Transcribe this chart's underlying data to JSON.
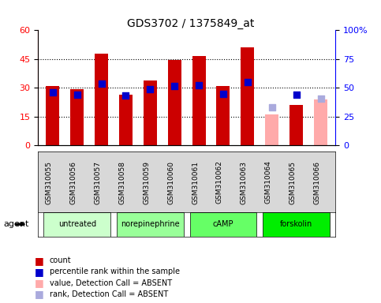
{
  "title": "GDS3702 / 1375849_at",
  "samples": [
    "GSM310055",
    "GSM310056",
    "GSM310057",
    "GSM310058",
    "GSM310059",
    "GSM310060",
    "GSM310061",
    "GSM310062",
    "GSM310063",
    "GSM310064",
    "GSM310065",
    "GSM310066"
  ],
  "groups": [
    {
      "label": "untreated",
      "color": "#ccffcc",
      "indices": [
        0,
        1,
        2
      ]
    },
    {
      "label": "norepinephrine",
      "color": "#99ff99",
      "indices": [
        3,
        4,
        5
      ]
    },
    {
      "label": "cAMP",
      "color": "#66ff66",
      "indices": [
        6,
        7,
        8
      ]
    },
    {
      "label": "forskolin",
      "color": "#00ee00",
      "indices": [
        9,
        10,
        11
      ]
    }
  ],
  "count_values": [
    31.0,
    29.5,
    48.0,
    26.5,
    34.0,
    44.5,
    46.5,
    31.0,
    51.0,
    16.0,
    21.0,
    24.0
  ],
  "rank_values": [
    27.5,
    26.5,
    32.0,
    26.0,
    29.5,
    31.0,
    31.5,
    27.0,
    33.0,
    null,
    26.5,
    null
  ],
  "absent_count": [
    null,
    null,
    null,
    null,
    null,
    null,
    null,
    null,
    null,
    16.0,
    null,
    24.0
  ],
  "absent_rank": [
    null,
    null,
    null,
    null,
    null,
    null,
    null,
    null,
    null,
    20.0,
    null,
    24.5
  ],
  "ylim_left": [
    0,
    60
  ],
  "ylim_right": [
    0,
    100
  ],
  "yticks_left": [
    0,
    15,
    30,
    45,
    60
  ],
  "yticks_right": [
    0,
    25,
    50,
    75,
    100
  ],
  "ytick_labels_right": [
    "0",
    "25",
    "50",
    "75",
    "100%"
  ],
  "bar_color_present": "#cc0000",
  "bar_color_absent": "#ffaaaa",
  "rank_color_present": "#0000cc",
  "rank_color_absent": "#aaaadd",
  "bg_color": "#e8e8e8",
  "agent_label": "agent",
  "legend_items": [
    {
      "color": "#cc0000",
      "marker": "s",
      "label": "count"
    },
    {
      "color": "#0000cc",
      "marker": "s",
      "label": "percentile rank within the sample"
    },
    {
      "color": "#ffaaaa",
      "marker": "s",
      "label": "value, Detection Call = ABSENT"
    },
    {
      "color": "#aaaadd",
      "marker": "s",
      "label": "rank, Detection Call = ABSENT"
    }
  ]
}
